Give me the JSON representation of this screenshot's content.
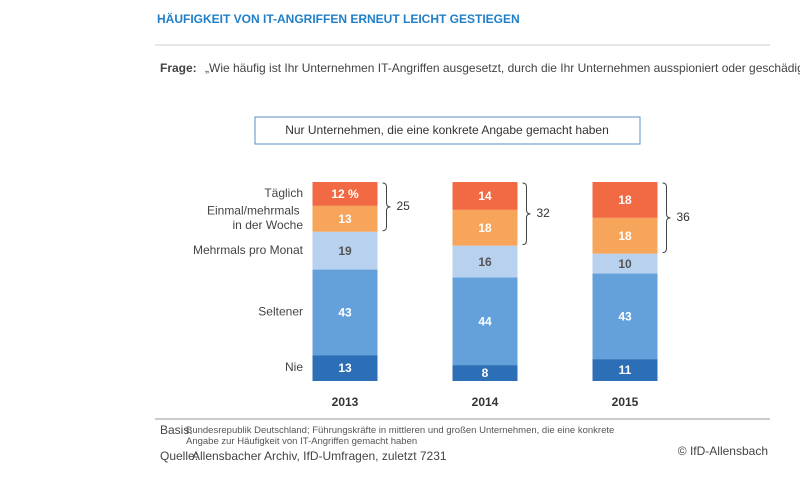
{
  "header": {
    "title": "HÄUFIGKEIT VON IT-ANGRIFFEN ERNEUT LEICHT GESTIEGEN",
    "question_label": "Frage:",
    "question": "„Wie häufig ist Ihr Unternehmen IT-Angriffen ausgesetzt, durch die Ihr Unternehmen ausspioniert oder geschädigt werden soll?“"
  },
  "chart_data": {
    "type": "stacked_bar",
    "subtitle": "Nur Unternehmen, die eine konkrete Angabe gemacht haben",
    "categories": [
      "2013",
      "2014",
      "2015"
    ],
    "series": [
      {
        "name": "Nie",
        "color": "#2c6fb6",
        "label_color": "#ffffff",
        "values": [
          13,
          8,
          11
        ]
      },
      {
        "name": "Seltener",
        "color": "#64a0d9",
        "label_color": "#ffffff",
        "values": [
          43,
          44,
          43
        ]
      },
      {
        "name": "Mehrmals pro Monat",
        "color": "#b8d1ee",
        "label_color": "#555555",
        "values": [
          19,
          16,
          10
        ]
      },
      {
        "name": "Einmal/mehrmals in der Woche",
        "color": "#f8a55c",
        "label_color": "#ffffff",
        "values": [
          13,
          18,
          18
        ]
      },
      {
        "name": "Täglich",
        "color": "#f26a43",
        "label_color": "#ffffff",
        "values": [
          12,
          14,
          18
        ],
        "value_labels": [
          "12 %",
          "14",
          "18"
        ]
      }
    ],
    "brace_totals": [
      25,
      32,
      36
    ]
  },
  "footer": {
    "basis_label": "Basis:",
    "basis": "Bundesrepublik Deutschland; Führungskräfte in mittleren und großen Unternehmen, die eine konkrete Angabe zur Häufigkeit von IT-Angriffen gemacht haben",
    "source_label": "Quelle:",
    "source": "Allensbacher Archiv, IfD-Umfragen, zuletzt 7231",
    "copyright": "© IfD-Allensbach"
  }
}
